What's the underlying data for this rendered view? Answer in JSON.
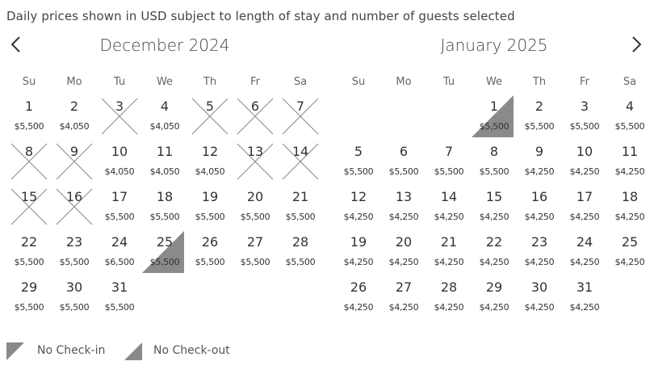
{
  "notice": "Daily prices shown in USD subject to length of stay and number of guests selected",
  "icons": {
    "prev": "chevron-left-icon",
    "next": "chevron-right-icon"
  },
  "colors": {
    "text": "#333333",
    "marker": "#8a8a8a",
    "cross": "#888888"
  },
  "weekdays": [
    "Su",
    "Mo",
    "Tu",
    "We",
    "Th",
    "Fr",
    "Sa"
  ],
  "months": [
    {
      "title": "December 2024",
      "start_weekday": 0,
      "days": [
        {
          "d": "1",
          "p": "$5,500"
        },
        {
          "d": "2",
          "p": "$4,050"
        },
        {
          "d": "3",
          "p": "",
          "status": "unavailable"
        },
        {
          "d": "4",
          "p": "$4,050"
        },
        {
          "d": "5",
          "p": "",
          "status": "unavailable"
        },
        {
          "d": "6",
          "p": "",
          "status": "unavailable"
        },
        {
          "d": "7",
          "p": "",
          "status": "unavailable"
        },
        {
          "d": "8",
          "p": "",
          "status": "unavailable"
        },
        {
          "d": "9",
          "p": "",
          "status": "unavailable"
        },
        {
          "d": "10",
          "p": "$4,050"
        },
        {
          "d": "11",
          "p": "$4,050"
        },
        {
          "d": "12",
          "p": "$4,050"
        },
        {
          "d": "13",
          "p": "",
          "status": "unavailable"
        },
        {
          "d": "14",
          "p": "",
          "status": "unavailable"
        },
        {
          "d": "15",
          "p": "",
          "status": "unavailable"
        },
        {
          "d": "16",
          "p": "",
          "status": "unavailable"
        },
        {
          "d": "17",
          "p": "$5,500"
        },
        {
          "d": "18",
          "p": "$5,500"
        },
        {
          "d": "19",
          "p": "$5,500"
        },
        {
          "d": "20",
          "p": "$5,500"
        },
        {
          "d": "21",
          "p": "$5,500"
        },
        {
          "d": "22",
          "p": "$5,500"
        },
        {
          "d": "23",
          "p": "$5,500"
        },
        {
          "d": "24",
          "p": "$6,500"
        },
        {
          "d": "25",
          "p": "$5,500",
          "status": "no-checkout"
        },
        {
          "d": "26",
          "p": "$5,500"
        },
        {
          "d": "27",
          "p": "$5,500"
        },
        {
          "d": "28",
          "p": "$5,500"
        },
        {
          "d": "29",
          "p": "$5,500"
        },
        {
          "d": "30",
          "p": "$5,500"
        },
        {
          "d": "31",
          "p": "$5,500"
        }
      ]
    },
    {
      "title": "January 2025",
      "start_weekday": 3,
      "days": [
        {
          "d": "1",
          "p": "$5,500",
          "status": "no-checkout"
        },
        {
          "d": "2",
          "p": "$5,500"
        },
        {
          "d": "3",
          "p": "$5,500"
        },
        {
          "d": "4",
          "p": "$5,500"
        },
        {
          "d": "5",
          "p": "$5,500"
        },
        {
          "d": "6",
          "p": "$5,500"
        },
        {
          "d": "7",
          "p": "$5,500"
        },
        {
          "d": "8",
          "p": "$5,500"
        },
        {
          "d": "9",
          "p": "$4,250"
        },
        {
          "d": "10",
          "p": "$4,250"
        },
        {
          "d": "11",
          "p": "$4,250"
        },
        {
          "d": "12",
          "p": "$4,250"
        },
        {
          "d": "13",
          "p": "$4,250"
        },
        {
          "d": "14",
          "p": "$4,250"
        },
        {
          "d": "15",
          "p": "$4,250"
        },
        {
          "d": "16",
          "p": "$4,250"
        },
        {
          "d": "17",
          "p": "$4,250"
        },
        {
          "d": "18",
          "p": "$4,250"
        },
        {
          "d": "19",
          "p": "$4,250"
        },
        {
          "d": "20",
          "p": "$4,250"
        },
        {
          "d": "21",
          "p": "$4,250"
        },
        {
          "d": "22",
          "p": "$4,250"
        },
        {
          "d": "23",
          "p": "$4,250"
        },
        {
          "d": "24",
          "p": "$4,250"
        },
        {
          "d": "25",
          "p": "$4,250"
        },
        {
          "d": "26",
          "p": "$4,250"
        },
        {
          "d": "27",
          "p": "$4,250"
        },
        {
          "d": "28",
          "p": "$4,250"
        },
        {
          "d": "29",
          "p": "$4,250"
        },
        {
          "d": "30",
          "p": "$4,250"
        },
        {
          "d": "31",
          "p": "$4,250"
        }
      ]
    }
  ],
  "legend": {
    "no_checkin": "No Check-in",
    "no_checkout": "No Check-out"
  }
}
